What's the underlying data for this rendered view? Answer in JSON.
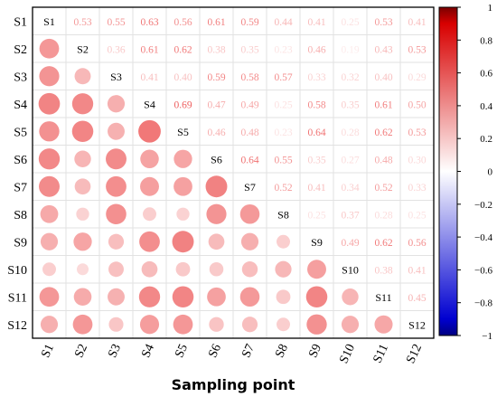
{
  "chart_data": {
    "type": "heatmap",
    "subtype": "correlogram",
    "title": "",
    "xlabel": "Sampling point",
    "ylabel": "",
    "labels": [
      "S1",
      "S2",
      "S3",
      "S4",
      "S5",
      "S6",
      "S7",
      "S8",
      "S9",
      "S10",
      "S11",
      "S12"
    ],
    "upper_values": [
      [
        null,
        0.53,
        0.55,
        0.63,
        0.56,
        0.61,
        0.59,
        0.44,
        0.41,
        0.25,
        0.53,
        0.41
      ],
      [
        null,
        null,
        0.36,
        0.61,
        0.62,
        0.38,
        0.35,
        0.23,
        0.46,
        0.19,
        0.43,
        0.53
      ],
      [
        null,
        null,
        null,
        0.41,
        0.4,
        0.59,
        0.58,
        0.57,
        0.33,
        0.32,
        0.4,
        0.29
      ],
      [
        null,
        null,
        null,
        null,
        0.69,
        0.47,
        0.49,
        0.25,
        0.58,
        0.35,
        0.61,
        0.5
      ],
      [
        null,
        null,
        null,
        null,
        null,
        0.46,
        0.48,
        0.23,
        0.64,
        0.28,
        0.62,
        0.53
      ],
      [
        null,
        null,
        null,
        null,
        null,
        null,
        0.64,
        0.55,
        0.35,
        0.27,
        0.48,
        0.3
      ],
      [
        null,
        null,
        null,
        null,
        null,
        null,
        null,
        0.52,
        0.41,
        0.34,
        0.52,
        0.33
      ],
      [
        null,
        null,
        null,
        null,
        null,
        null,
        null,
        null,
        0.25,
        0.37,
        0.28,
        0.25
      ],
      [
        null,
        null,
        null,
        null,
        null,
        null,
        null,
        null,
        null,
        0.49,
        0.62,
        0.56
      ],
      [
        null,
        null,
        null,
        null,
        null,
        null,
        null,
        null,
        null,
        null,
        0.38,
        0.41
      ],
      [
        null,
        null,
        null,
        null,
        null,
        null,
        null,
        null,
        null,
        null,
        null,
        0.45
      ],
      [
        null,
        null,
        null,
        null,
        null,
        null,
        null,
        null,
        null,
        null,
        null,
        null
      ]
    ],
    "colorbar": {
      "range": [
        -1,
        1
      ],
      "ticks": [
        "1",
        "0.8",
        "0.6",
        "0.4",
        "0.2",
        "0",
        "−0.2",
        "−0.4",
        "−0.6",
        "−0.8",
        "−1"
      ],
      "tick_values": [
        1,
        0.8,
        0.6,
        0.4,
        0.2,
        0,
        -0.2,
        -0.4,
        -0.6,
        -0.8,
        -1
      ],
      "colors": {
        "negative": "#0a0a9a",
        "zero": "#ffffff",
        "positive": "#e81818"
      }
    },
    "grid": true,
    "legend": "right"
  }
}
